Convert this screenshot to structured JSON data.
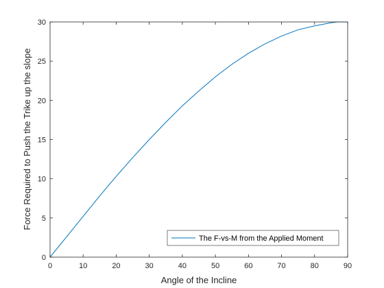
{
  "chart_data": {
    "type": "line",
    "title": "",
    "xlabel": "Angle of the Incline",
    "ylabel": "Force Required to Push the Trike up the slope",
    "xlim": [
      0,
      90
    ],
    "ylim": [
      0,
      30
    ],
    "xticks": [
      0,
      10,
      20,
      30,
      40,
      50,
      60,
      70,
      80,
      90
    ],
    "yticks": [
      0,
      5,
      10,
      15,
      20,
      25,
      30
    ],
    "grid": false,
    "legend_position": "bottom-right",
    "series": [
      {
        "name": "The F-vs-M from the Applied Moment",
        "color": "#0072BD",
        "x": [
          0,
          5,
          10,
          15,
          20,
          25,
          30,
          35,
          40,
          45,
          50,
          55,
          60,
          65,
          70,
          75,
          80,
          85,
          87,
          90
        ],
        "y": [
          0,
          2.6,
          5.2,
          7.8,
          10.3,
          12.7,
          15.0,
          17.2,
          19.3,
          21.2,
          23.0,
          24.6,
          26.0,
          27.2,
          28.2,
          29.0,
          29.5,
          29.9,
          30.0,
          30.0
        ]
      }
    ]
  }
}
